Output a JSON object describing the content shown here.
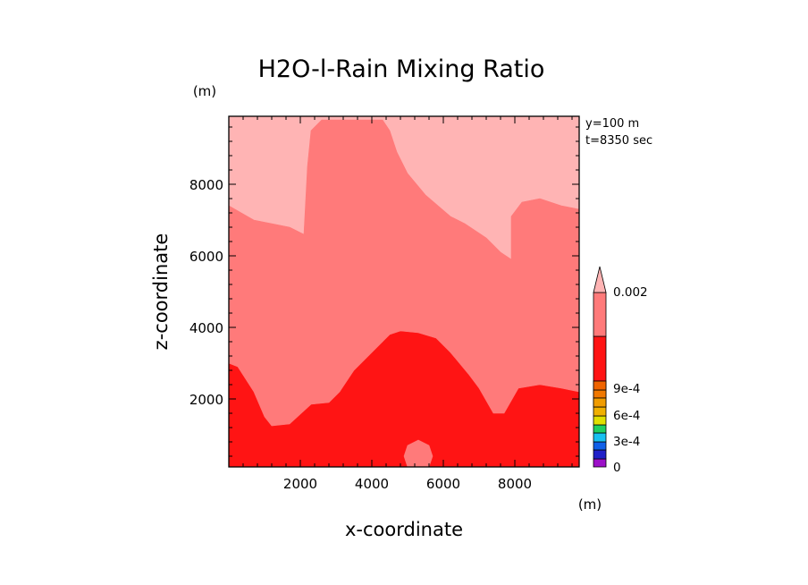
{
  "chart_data": {
    "type": "contour",
    "title": "H2O-l-Rain Mixing Ratio",
    "xlabel": "x-coordinate",
    "ylabel": "z-coordinate",
    "x_unit": "(m)",
    "y_unit": "(m)",
    "xlim": [
      0,
      9800
    ],
    "ylim": [
      100,
      9900
    ],
    "x_ticks": [
      2000,
      4000,
      6000,
      8000
    ],
    "y_ticks": [
      2000,
      4000,
      6000,
      8000
    ],
    "annotations": [
      "y=100 m",
      "t=8350 sec"
    ],
    "colorbar": {
      "labels": [
        "0.002",
        "9e-4",
        "6e-4",
        "3e-4",
        "0"
      ],
      "label_values": [
        0.002,
        0.0009,
        0.0006,
        0.0003,
        0
      ],
      "levels": [
        {
          "from": 0,
          "to": 0.00015,
          "color": "#9c10c8"
        },
        {
          "from": 0.00015,
          "to": 0.0003,
          "color": "#2020c8"
        },
        {
          "from": 0.0003,
          "to": 0.00045,
          "color": "#1060e8"
        },
        {
          "from": 0.00045,
          "to": 0.0006,
          "color": "#18c0f0"
        },
        {
          "from": 0.0006,
          "to": 0.00075,
          "color": "#20d060"
        },
        {
          "from": 0.00075,
          "to": 0.0009,
          "color": "#e0e000"
        },
        {
          "from": 0.0009,
          "to": 0.00105,
          "color": "#f0b000"
        },
        {
          "from": 0.00105,
          "to": 0.0012,
          "color": "#f08800"
        },
        {
          "from": 0.0012,
          "to": 0.0015,
          "color": "#ff1414"
        },
        {
          "from": 0.0015,
          "to": 0.002,
          "color": "#ff7a7a"
        },
        {
          "from": 0.002,
          "to": null,
          "color": "#ffb4b4"
        }
      ]
    },
    "regions": [
      {
        "name": "low",
        "value_range": "1.2e-3 to 1.5e-3",
        "color": "#ff1414",
        "polygon": [
          [
            0,
            3000
          ],
          [
            250,
            2900
          ],
          [
            700,
            2200
          ],
          [
            1000,
            1500
          ],
          [
            1200,
            1250
          ],
          [
            1700,
            1300
          ],
          [
            2300,
            1850
          ],
          [
            2800,
            1900
          ],
          [
            3100,
            2200
          ],
          [
            3500,
            2800
          ],
          [
            4000,
            3300
          ],
          [
            4300,
            3600
          ],
          [
            4500,
            3800
          ],
          [
            4800,
            3900
          ],
          [
            5300,
            3850
          ],
          [
            5800,
            3700
          ],
          [
            6200,
            3300
          ],
          [
            6700,
            2700
          ],
          [
            7000,
            2300
          ],
          [
            7400,
            1600
          ],
          [
            7700,
            1600
          ],
          [
            8100,
            2300
          ],
          [
            8700,
            2400
          ],
          [
            9300,
            2300
          ],
          [
            9800,
            2200
          ],
          [
            9800,
            100
          ],
          [
            0,
            100
          ]
        ]
      },
      {
        "name": "mid",
        "value_range": "1.5e-3 to 2e-3",
        "color": "#ff7a7a",
        "polygon": [
          [
            0,
            7400
          ],
          [
            700,
            7000
          ],
          [
            1700,
            6800
          ],
          [
            2100,
            6600
          ],
          [
            2200,
            8500
          ],
          [
            2300,
            9500
          ],
          [
            2600,
            9800
          ],
          [
            4300,
            9800
          ],
          [
            4500,
            9500
          ],
          [
            4700,
            8900
          ],
          [
            5000,
            8300
          ],
          [
            5500,
            7700
          ],
          [
            6200,
            7100
          ],
          [
            6600,
            6900
          ],
          [
            7200,
            6500
          ],
          [
            7600,
            6100
          ],
          [
            7900,
            5900
          ],
          [
            7900,
            7100
          ],
          [
            8200,
            7500
          ],
          [
            8700,
            7600
          ],
          [
            9300,
            7400
          ],
          [
            9800,
            7300
          ],
          [
            9800,
            2200
          ],
          [
            9300,
            2300
          ],
          [
            8700,
            2400
          ],
          [
            8100,
            2300
          ],
          [
            7700,
            1600
          ],
          [
            7400,
            1600
          ],
          [
            7000,
            2300
          ],
          [
            6700,
            2700
          ],
          [
            6200,
            3300
          ],
          [
            5800,
            3700
          ],
          [
            5300,
            3850
          ],
          [
            4800,
            3900
          ],
          [
            4500,
            3800
          ],
          [
            4300,
            3600
          ],
          [
            4000,
            3300
          ],
          [
            3500,
            2800
          ],
          [
            3100,
            2200
          ],
          [
            2800,
            1900
          ],
          [
            2300,
            1850
          ],
          [
            1700,
            1300
          ],
          [
            1200,
            1250
          ],
          [
            1000,
            1500
          ],
          [
            700,
            2200
          ],
          [
            250,
            2900
          ],
          [
            0,
            3000
          ]
        ]
      },
      {
        "name": "pocket",
        "value_range": "1.5e-3 to 2e-3",
        "color": "#ff7a7a",
        "polygon": [
          [
            5000,
            100
          ],
          [
            4900,
            400
          ],
          [
            5000,
            700
          ],
          [
            5300,
            850
          ],
          [
            5600,
            700
          ],
          [
            5700,
            400
          ],
          [
            5600,
            100
          ]
        ]
      }
    ]
  }
}
